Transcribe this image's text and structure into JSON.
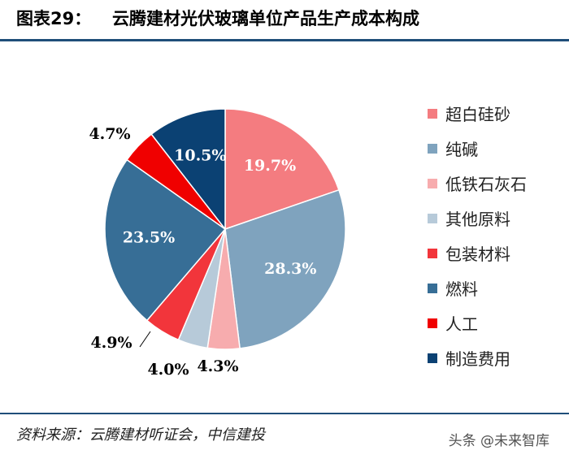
{
  "header": {
    "figure_label": "图表29：",
    "title": "云腾建材光伏玻璃单位产品生产成本构成"
  },
  "chart_data": {
    "type": "pie",
    "title": "云腾建材光伏玻璃单位产品生产成本构成",
    "legend_position": "right",
    "slices": [
      {
        "label": "超白硅砂",
        "value": 19.7,
        "value_label": "19.7%",
        "color": "#f47c80"
      },
      {
        "label": "纯碱",
        "value": 28.3,
        "value_label": "28.3%",
        "color": "#7fa3be"
      },
      {
        "label": "低铁石灰石",
        "value": 4.3,
        "value_label": "4.3%",
        "color": "#f7acae"
      },
      {
        "label": "其他原料",
        "value": 4.0,
        "value_label": "4.0%",
        "color": "#b7cad9"
      },
      {
        "label": "包装材料",
        "value": 4.9,
        "value_label": "4.9%",
        "color": "#f2353b"
      },
      {
        "label": "燃料",
        "value": 23.5,
        "value_label": "23.5%",
        "color": "#376e96"
      },
      {
        "label": "人工",
        "value": 4.7,
        "value_label": "4.7%",
        "color": "#f00000"
      },
      {
        "label": "制造费用",
        "value": 10.5,
        "value_label": "10.5%",
        "color": "#0b4173"
      }
    ]
  },
  "footer": {
    "source": "资料来源：云腾建材听证会，中信建投",
    "watermark": "头条 @未来智库"
  }
}
